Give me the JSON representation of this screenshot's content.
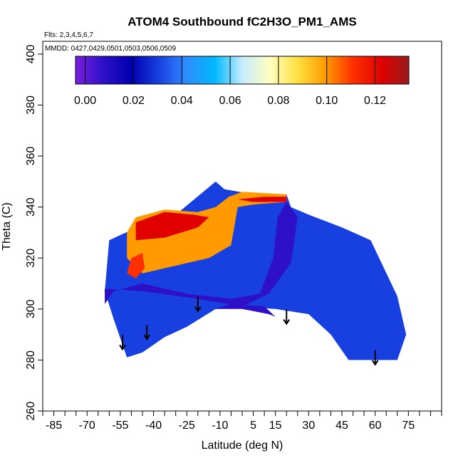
{
  "chart_data": {
    "type": "heatmap",
    "title": "ATOM4 Southbound fC2H3O_PM1_AMS",
    "flights_label": "Flts: 2,3,4,5,6,7",
    "mmdd_label": "MMDD: 0427,0429,0501,0503,0506,0509",
    "xlabel": "Latitude (deg N)",
    "ylabel": "Theta (C)",
    "xlim": [
      -90,
      90
    ],
    "ylim": [
      260,
      405
    ],
    "x_ticks": [
      -85,
      -70,
      -55,
      -40,
      -25,
      -10,
      5,
      15,
      30,
      45,
      60,
      75
    ],
    "y_ticks": [
      260,
      280,
      300,
      320,
      340,
      360,
      380,
      400
    ],
    "colorbar": {
      "range": [
        -0.004,
        0.134
      ],
      "ticks": [
        0.0,
        0.02,
        0.04,
        0.06,
        0.08,
        0.1,
        0.12
      ],
      "tick_labels": [
        "0.00",
        "0.02",
        "0.04",
        "0.06",
        "0.08",
        "0.10",
        "0.12"
      ],
      "colors": [
        "#7a1fe0",
        "#2d10c8",
        "#0000b0",
        "#1840e0",
        "#2f8cff",
        "#00b8ff",
        "#c8ecff",
        "#ffffc0",
        "#ffe040",
        "#ff9a00",
        "#ff3000",
        "#e00000",
        "#9a1a1a"
      ]
    },
    "flight_markers_lat": [
      -54,
      -43,
      -20,
      20,
      60
    ],
    "flight_markers_theta": [
      287,
      291,
      302,
      297,
      281
    ],
    "regions": [
      {
        "value": 0.035,
        "outline": [
          [
            -62,
            307
          ],
          [
            -60,
            327
          ],
          [
            -50,
            331
          ],
          [
            -30,
            337
          ],
          [
            -12,
            350
          ],
          [
            -8,
            347
          ],
          [
            5,
            345
          ],
          [
            20,
            345
          ],
          [
            22,
            340
          ],
          [
            30,
            337
          ],
          [
            45,
            332
          ],
          [
            58,
            327
          ],
          [
            70,
            305
          ],
          [
            74,
            290
          ],
          [
            70,
            280
          ],
          [
            48,
            280
          ],
          [
            40,
            290
          ],
          [
            30,
            298
          ],
          [
            15,
            300
          ],
          [
            0,
            301
          ],
          [
            -12,
            300
          ],
          [
            -25,
            293
          ],
          [
            -35,
            289
          ],
          [
            -45,
            283
          ],
          [
            -52,
            281
          ],
          [
            -58,
            296
          ]
        ]
      },
      {
        "value": 0.012,
        "outline": [
          [
            -62,
            302
          ],
          [
            -62,
            308
          ],
          [
            -45,
            307
          ],
          [
            -20,
            304
          ],
          [
            0,
            301
          ],
          [
            12,
            306
          ],
          [
            22,
            318
          ],
          [
            25,
            336
          ],
          [
            20,
            342
          ],
          [
            16,
            336
          ],
          [
            14,
            320
          ],
          [
            8,
            306
          ],
          [
            -5,
            304
          ],
          [
            -25,
            306
          ],
          [
            -45,
            310
          ],
          [
            -58,
            307
          ]
        ]
      },
      {
        "value": 0.095,
        "outline": [
          [
            -52,
            330
          ],
          [
            -48,
            336
          ],
          [
            -35,
            339
          ],
          [
            -20,
            338
          ],
          [
            -12,
            340
          ],
          [
            -6,
            344
          ],
          [
            0,
            346
          ],
          [
            20,
            345
          ],
          [
            20,
            342
          ],
          [
            5,
            341
          ],
          [
            -2,
            340
          ],
          [
            -5,
            325
          ],
          [
            -15,
            320
          ],
          [
            -30,
            317
          ],
          [
            -45,
            314
          ],
          [
            -52,
            320
          ]
        ]
      },
      {
        "value": 0.118,
        "outline": [
          [
            -48,
            334
          ],
          [
            -35,
            338
          ],
          [
            -22,
            337
          ],
          [
            -15,
            336
          ],
          [
            -20,
            332
          ],
          [
            -35,
            328
          ],
          [
            -48,
            327
          ]
        ]
      },
      {
        "value": 0.11,
        "outline": [
          [
            -52,
            314
          ],
          [
            -50,
            320
          ],
          [
            -45,
            322
          ],
          [
            -44,
            316
          ],
          [
            -48,
            312
          ]
        ]
      },
      {
        "value": 0.125,
        "outline": [
          [
            -2,
            343
          ],
          [
            10,
            344
          ],
          [
            20,
            344
          ],
          [
            20,
            342
          ],
          [
            5,
            342
          ]
        ]
      },
      {
        "value": 0.002,
        "outline": [
          [
            -12,
            300
          ],
          [
            0,
            300
          ],
          [
            12,
            298
          ],
          [
            15,
            297
          ],
          [
            10,
            301
          ],
          [
            -5,
            302
          ]
        ]
      }
    ]
  }
}
